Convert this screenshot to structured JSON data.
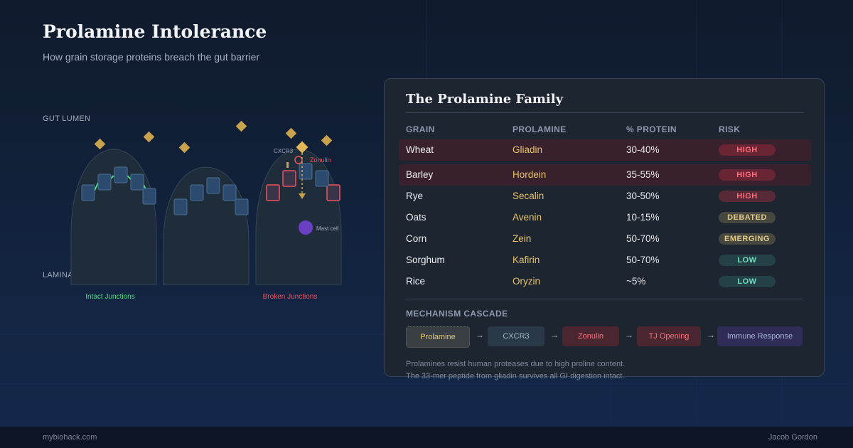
{
  "title": "Prolamine Intolerance",
  "subtitle": "How grain storage proteins breach the gut barrier",
  "diagram": {
    "gut_lumen_label": "GUT LUMEN",
    "lamina_propria_label": "LAMINA PROPRIA",
    "intact_label": "Intact Junctions",
    "broken_label": "Broken Junctions",
    "cxcr3_label": "CXCR3",
    "zonulin_label": "Zonulin",
    "mast_cell_label": "Mast cell",
    "colors": {
      "intact": "#4ade80",
      "broken": "#f05260",
      "prolamine": "#c9a24e",
      "mast_cell": "#6a3fc4"
    }
  },
  "table": {
    "title": "The Prolamine Family",
    "headers": {
      "grain": "GRAIN",
      "prolamine": "PROLAMINE",
      "protein": "% PROTEIN",
      "risk": "RISK"
    },
    "rows": [
      {
        "grain": "Wheat",
        "prolamine": "Gliadin",
        "protein": "30-40%",
        "risk": "HIGH",
        "level": "high",
        "highlighted": true
      },
      {
        "grain": "Barley",
        "prolamine": "Hordein",
        "protein": "35-55%",
        "risk": "HIGH",
        "level": "high",
        "highlighted": true
      },
      {
        "grain": "Rye",
        "prolamine": "Secalin",
        "protein": "30-50%",
        "risk": "HIGH",
        "level": "high",
        "highlighted": false
      },
      {
        "grain": "Oats",
        "prolamine": "Avenin",
        "protein": "10-15%",
        "risk": "DEBATED",
        "level": "debated",
        "highlighted": false
      },
      {
        "grain": "Corn",
        "prolamine": "Zein",
        "protein": "50-70%",
        "risk": "EMERGING",
        "level": "emerging",
        "highlighted": false
      },
      {
        "grain": "Sorghum",
        "prolamine": "Kafirin",
        "protein": "50-70%",
        "risk": "LOW",
        "level": "low",
        "highlighted": false
      },
      {
        "grain": "Rice",
        "prolamine": "Oryzin",
        "protein": "~5%",
        "risk": "LOW",
        "level": "low",
        "highlighted": false
      }
    ]
  },
  "cascade": {
    "label": "MECHANISM CASCADE",
    "arrow": "→",
    "steps": [
      "Prolamine",
      "CXCR3",
      "Zonulin",
      "TJ Opening",
      "Immune Response"
    ]
  },
  "footnote": {
    "line1": "Prolamines resist human proteases due to high proline content.",
    "line2": "The 33-mer peptide from gliadin survives all GI digestion intact."
  },
  "footer": {
    "site": "mybiohack.com",
    "author": "Jacob Gordon"
  }
}
